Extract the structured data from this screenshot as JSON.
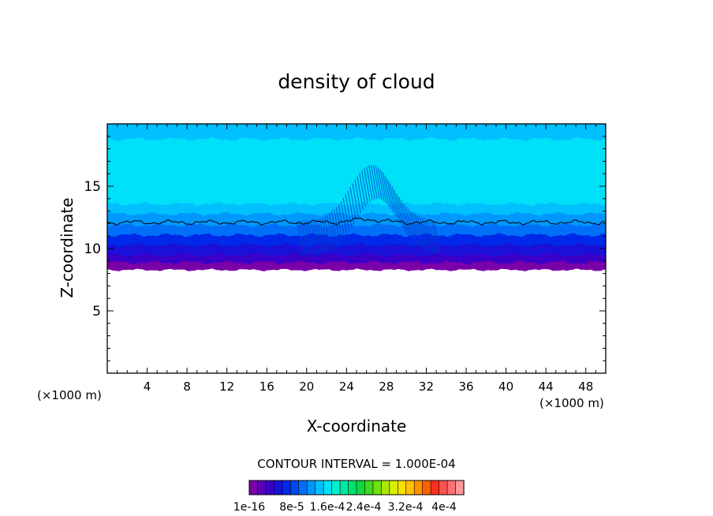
{
  "chart_data": {
    "type": "heatmap",
    "title": "density of cloud",
    "xlabel": "X-coordinate",
    "ylabel": "Z-coordinate",
    "x_unit": "(×1000 m)",
    "x_unit_right": "(×1000 m)",
    "xlim": [
      0,
      50
    ],
    "ylim": [
      0,
      20
    ],
    "x_ticks": [
      4,
      8,
      12,
      16,
      20,
      24,
      28,
      32,
      36,
      40,
      44,
      48
    ],
    "y_ticks": [
      5,
      10,
      15
    ],
    "x_tick_labels": [
      "4",
      "8",
      "12",
      "16",
      "20",
      "24",
      "28",
      "32",
      "36",
      "40",
      "44",
      "48"
    ],
    "y_tick_labels": [
      "5",
      "10",
      "15"
    ],
    "contour_interval_text": "CONTOUR INTERVAL = 1.000E-04",
    "colorbar": {
      "labels": [
        "1e-16",
        "8e-5",
        "1.6e-4",
        "2.4e-4",
        "3.2e-4",
        "4e-4"
      ],
      "colors": [
        "#7a00a8",
        "#5a00b8",
        "#3a00c8",
        "#1a10d8",
        "#0028e8",
        "#0048f0",
        "#0070f8",
        "#0098fc",
        "#00c0ff",
        "#00e0f8",
        "#00f0d0",
        "#00e8a0",
        "#00e070",
        "#10d840",
        "#40d820",
        "#70e010",
        "#a8e800",
        "#d8f000",
        "#f8e000",
        "#ffc000",
        "#ff9000",
        "#ff6000",
        "#ff3020",
        "#ff5050",
        "#ff7070",
        "#ff9898"
      ]
    },
    "bands": [
      {
        "z0": 8.3,
        "z1": 8.9,
        "color": "#7a00a8"
      },
      {
        "z0": 8.9,
        "z1": 9.5,
        "color": "#3a00c8"
      },
      {
        "z0": 9.5,
        "z1": 10.3,
        "color": "#1a10d8"
      },
      {
        "z0": 10.3,
        "z1": 11.1,
        "color": "#0028e8"
      },
      {
        "z0": 11.1,
        "z1": 11.9,
        "color": "#0070f8"
      },
      {
        "z0": 11.9,
        "z1": 12.8,
        "color": "#0098fc"
      },
      {
        "z0": 12.8,
        "z1": 13.6,
        "color": "#00c0ff"
      },
      {
        "z0": 13.6,
        "z1": 18.8,
        "color": "#00e0f8"
      },
      {
        "z0": 18.8,
        "z1": 20.0,
        "color": "#00c0ff"
      }
    ],
    "contour_line_z": 12.1
  }
}
